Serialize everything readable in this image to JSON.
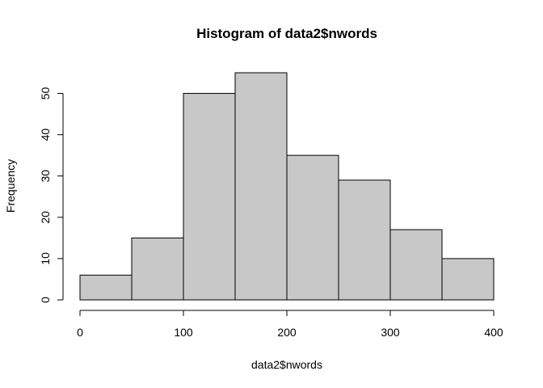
{
  "chart_data": {
    "type": "bar",
    "title": "Histogram of data2$nwords",
    "xlabel": "data2$nwords",
    "ylabel": "Frequency",
    "bins": [
      {
        "x0": 0,
        "x1": 50,
        "count": 6
      },
      {
        "x0": 50,
        "x1": 100,
        "count": 15
      },
      {
        "x0": 100,
        "x1": 150,
        "count": 50
      },
      {
        "x0": 150,
        "x1": 200,
        "count": 55
      },
      {
        "x0": 200,
        "x1": 250,
        "count": 35
      },
      {
        "x0": 250,
        "x1": 300,
        "count": 29
      },
      {
        "x0": 300,
        "x1": 350,
        "count": 17
      },
      {
        "x0": 350,
        "x1": 400,
        "count": 10
      }
    ],
    "xticks": [
      0,
      100,
      200,
      300,
      400
    ],
    "yticks": [
      0,
      10,
      20,
      30,
      40,
      50
    ],
    "xlim": [
      0,
      400
    ],
    "ylim": [
      0,
      55
    ],
    "grid": false,
    "legend": "none",
    "bar_color": "#c8c8c8",
    "edge_color": "#000000"
  }
}
